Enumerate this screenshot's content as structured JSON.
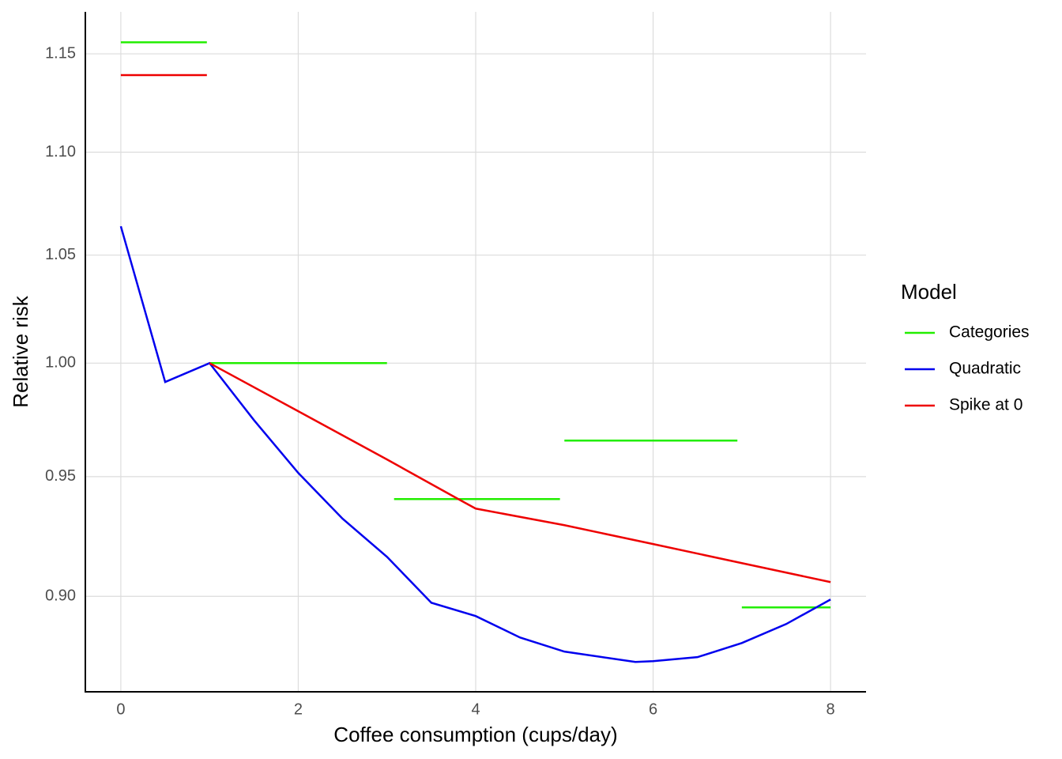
{
  "chart_data": {
    "type": "line",
    "x_label": "Coffee consumption (cups/day)",
    "y_label": "Relative risk",
    "log_y": true,
    "grid": true,
    "legend_title": "Model",
    "legend_position": "right",
    "xlim": [
      -0.4,
      8.4
    ],
    "ylim": [
      0.862,
      1.172
    ],
    "xticks": [
      0,
      2,
      4,
      6,
      8
    ],
    "yticks": [
      {
        "value": 0.9,
        "label": "0.90"
      },
      0.95,
      {
        "value": 1,
        "label": "1.00"
      },
      1.05,
      {
        "value": 1.1,
        "label": "1.10"
      },
      1.15
    ],
    "series": [
      {
        "name": "Categories",
        "color": "#22ee00",
        "x": [
          0,
          0.97,
          null,
          1,
          3,
          null,
          3.08,
          4.95,
          null,
          5,
          6.95,
          null,
          7,
          8
        ],
        "values": [
          1.156,
          1.156,
          null,
          1.0,
          1.0,
          null,
          0.9404,
          0.9404,
          null,
          0.9656,
          0.9656,
          null,
          0.8955,
          0.8955
        ]
      },
      {
        "name": "Quadratic",
        "color": "#0000ee",
        "x": [
          0,
          0.5,
          1,
          1.5,
          2,
          2.5,
          3,
          3.5,
          4,
          4.5,
          5,
          5.8,
          6,
          6.5,
          7,
          7.5,
          8
        ],
        "values": [
          1.0638,
          0.9915,
          1.0,
          0.9746,
          0.9516,
          0.9321,
          0.9162,
          0.8974,
          0.892,
          0.8834,
          0.8778,
          0.8737,
          0.874,
          0.8756,
          0.8812,
          0.8888,
          0.8987
        ]
      },
      {
        "name": "Spike at 0",
        "color": "#ee0000",
        "x": [
          0,
          0.97,
          null,
          1,
          2,
          3,
          3.8,
          4,
          5,
          6,
          7,
          8
        ],
        "values": [
          1.139,
          1.139,
          null,
          1.0,
          0.9785,
          0.9574,
          0.9405,
          0.9364,
          0.9294,
          0.9215,
          0.9136,
          0.9058
        ]
      }
    ]
  }
}
